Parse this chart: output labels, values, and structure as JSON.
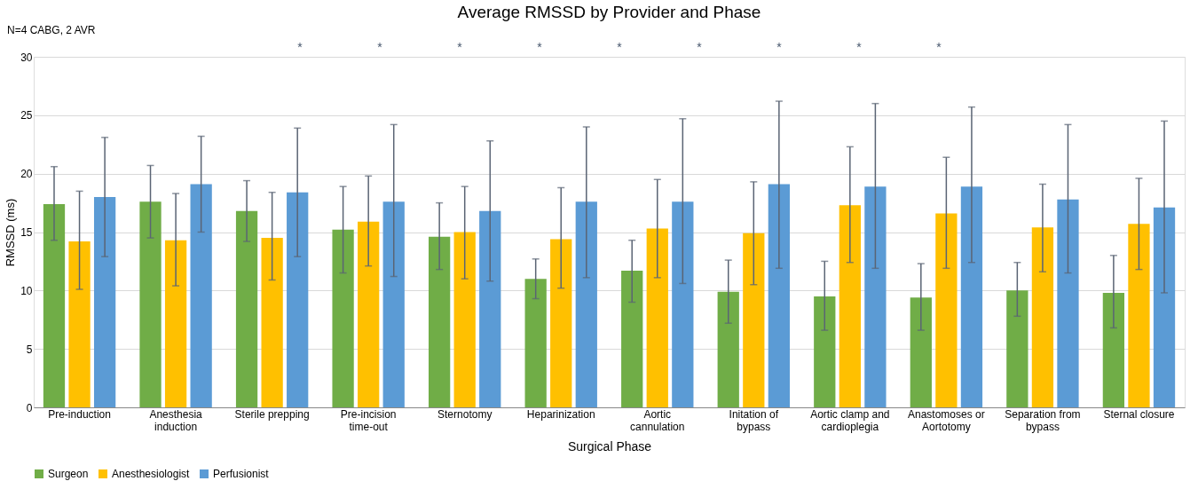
{
  "chart_data": {
    "type": "bar",
    "title": "Average RMSSD by Provider and Phase",
    "xlabel": "Surgical Phase",
    "ylabel": "RMSSD (ms)",
    "categories": [
      "Pre-induction",
      "Anesthesia induction",
      "Sterile prepping",
      "Pre-incision time-out",
      "Sternotomy",
      "Heparinization",
      "Aortic cannulation",
      "Initation of bypass",
      "Aortic clamp and cardioplegia",
      "Anastomoses or Aortotomy",
      "Separation from bypass",
      "Sternal closure"
    ],
    "series": [
      {
        "name": "Surgeon",
        "color": "#70ad47",
        "values": [
          17.4,
          17.6,
          16.8,
          15.2,
          14.6,
          11.0,
          11.7,
          9.9,
          9.5,
          9.4,
          10.0,
          9.8
        ],
        "errors": [
          [
            14.3,
            20.6
          ],
          [
            14.5,
            20.7
          ],
          [
            14.2,
            19.4
          ],
          [
            11.5,
            18.9
          ],
          [
            11.8,
            17.5
          ],
          [
            9.3,
            12.7
          ],
          [
            9.0,
            14.3
          ],
          [
            7.2,
            12.6
          ],
          [
            6.6,
            12.5
          ],
          [
            6.6,
            12.3
          ],
          [
            7.8,
            12.4
          ],
          [
            6.8,
            13.0
          ]
        ]
      },
      {
        "name": "Anesthesiologist",
        "color": "#ffc000",
        "values": [
          14.2,
          14.3,
          14.5,
          15.9,
          15.0,
          14.4,
          15.3,
          14.9,
          17.3,
          16.6,
          15.4,
          15.7
        ],
        "errors": [
          [
            10.1,
            18.5
          ],
          [
            10.4,
            18.3
          ],
          [
            10.9,
            18.4
          ],
          [
            12.1,
            19.8
          ],
          [
            11.0,
            18.9
          ],
          [
            10.2,
            18.8
          ],
          [
            11.1,
            19.5
          ],
          [
            10.5,
            19.3
          ],
          [
            12.4,
            22.3
          ],
          [
            11.9,
            21.4
          ],
          [
            11.6,
            19.1
          ],
          [
            11.8,
            19.6
          ]
        ]
      },
      {
        "name": "Perfusionist",
        "color": "#5b9bd5",
        "values": [
          18.0,
          19.1,
          18.4,
          17.6,
          16.8,
          17.6,
          17.6,
          19.1,
          18.9,
          18.9,
          17.8,
          17.1
        ],
        "errors": [
          [
            12.9,
            23.1
          ],
          [
            15.0,
            23.2
          ],
          [
            12.9,
            23.9
          ],
          [
            11.2,
            24.2
          ],
          [
            10.8,
            22.8
          ],
          [
            11.1,
            24.0
          ],
          [
            10.6,
            24.7
          ],
          [
            11.9,
            26.2
          ],
          [
            11.9,
            26.0
          ],
          [
            12.4,
            25.7
          ],
          [
            11.5,
            24.2
          ],
          [
            9.8,
            24.5
          ]
        ]
      }
    ],
    "ylim": [
      0,
      30
    ],
    "yticks": [
      0,
      5,
      10,
      15,
      20,
      25,
      30
    ],
    "grid": "y",
    "legend": "bottom",
    "annotations": [
      "N=4 CABG, 2 AVR",
      "*",
      "*",
      "*",
      "*",
      "*",
      "*",
      "*",
      "*",
      "*"
    ]
  }
}
